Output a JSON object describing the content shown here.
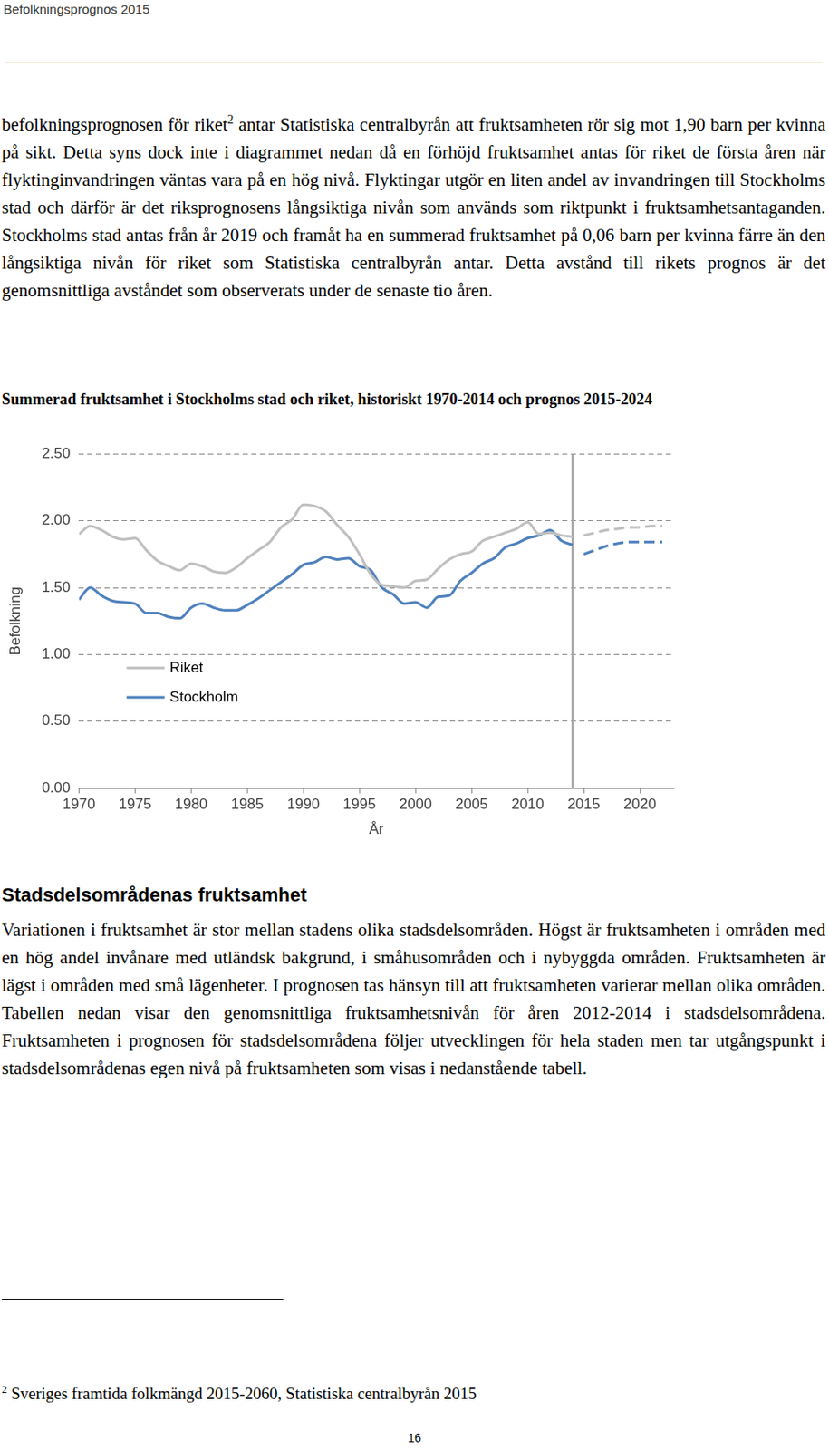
{
  "header": "Befolkningsprognos 2015",
  "intro": {
    "text_before": "befolkningsprognosen för riket",
    "footnote_ref": "2",
    "text_after": " antar Statistiska centralbyrån att fruktsamheten rör sig mot 1,90 barn per kvinna på sikt. Detta syns dock inte i diagrammet nedan då en förhöjd fruktsamhet antas för riket de första åren när flyktinginvandringen väntas vara på en hög nivå. Flyktingar utgör en liten andel av invandringen till Stockholms stad och därför är det riksprognosens långsiktiga nivån som används som riktpunkt i fruktsamhetsantaganden. Stockholms stad antas från år 2019 och framåt ha en summerad fruktsamhet på 0,06 barn per kvinna färre än den långsiktiga nivån för riket som Statistiska centralbyrån antar. Detta avstånd till rikets prognos är det genomsnittliga avståndet som observerats under de senaste tio åren."
  },
  "chart_data": {
    "type": "line",
    "title": "Summerad fruktsamhet i Stockholms stad och riket, historiskt 1970-2014 och prognos 2015-2024",
    "x_label": "År",
    "y_label": "Befolkning",
    "x": [
      1970,
      1971,
      1972,
      1973,
      1974,
      1975,
      1976,
      1977,
      1978,
      1979,
      1980,
      1981,
      1982,
      1983,
      1984,
      1985,
      1986,
      1987,
      1988,
      1989,
      1990,
      1991,
      1992,
      1993,
      1994,
      1995,
      1996,
      1997,
      1998,
      1999,
      2000,
      2001,
      2002,
      2003,
      2004,
      2005,
      2006,
      2007,
      2008,
      2009,
      2010,
      2011,
      2012,
      2013,
      2014,
      2015,
      2016,
      2017,
      2018,
      2019,
      2020,
      2021,
      2022
    ],
    "series": [
      {
        "name": "Riket",
        "color": "#bfbfbf",
        "line_style": "solid",
        "values": [
          1.9,
          1.96,
          1.93,
          1.88,
          1.86,
          1.87,
          1.78,
          1.7,
          1.66,
          1.63,
          1.68,
          1.66,
          1.62,
          1.61,
          1.65,
          1.72,
          1.78,
          1.84,
          1.95,
          2.01,
          2.12,
          2.11,
          2.07,
          1.97,
          1.88,
          1.75,
          1.6,
          1.52,
          1.51,
          1.5,
          1.55,
          1.56,
          1.64,
          1.71,
          1.75,
          1.77,
          1.85,
          1.88,
          1.91,
          1.94,
          1.99,
          1.9,
          1.91,
          1.89,
          1.88,
          null,
          null,
          null,
          null,
          null,
          null,
          null,
          null
        ],
        "forecast": {
          "line_style": "dashed",
          "values": [
            null,
            null,
            null,
            null,
            null,
            null,
            null,
            null,
            null,
            null,
            null,
            null,
            null,
            null,
            null,
            null,
            null,
            null,
            null,
            null,
            null,
            null,
            null,
            null,
            null,
            null,
            null,
            null,
            null,
            null,
            null,
            null,
            null,
            null,
            null,
            null,
            null,
            null,
            null,
            null,
            null,
            null,
            null,
            null,
            null,
            1.89,
            1.91,
            1.93,
            1.94,
            1.95,
            1.95,
            1.96,
            1.96
          ]
        }
      },
      {
        "name": "Stockholm",
        "color": "#4f81bd",
        "line_style": "solid",
        "values": [
          1.41,
          1.5,
          1.44,
          1.4,
          1.39,
          1.38,
          1.31,
          1.31,
          1.28,
          1.27,
          1.35,
          1.38,
          1.35,
          1.33,
          1.33,
          1.37,
          1.42,
          1.48,
          1.54,
          1.6,
          1.67,
          1.69,
          1.73,
          1.71,
          1.72,
          1.66,
          1.63,
          1.5,
          1.45,
          1.38,
          1.39,
          1.35,
          1.43,
          1.44,
          1.55,
          1.61,
          1.68,
          1.72,
          1.8,
          1.83,
          1.87,
          1.89,
          1.93,
          1.85,
          1.82,
          null,
          null,
          null,
          null,
          null,
          null,
          null,
          null
        ],
        "forecast": {
          "line_style": "dashed",
          "values": [
            null,
            null,
            null,
            null,
            null,
            null,
            null,
            null,
            null,
            null,
            null,
            null,
            null,
            null,
            null,
            null,
            null,
            null,
            null,
            null,
            null,
            null,
            null,
            null,
            null,
            null,
            null,
            null,
            null,
            null,
            null,
            null,
            null,
            null,
            null,
            null,
            null,
            null,
            null,
            null,
            null,
            null,
            null,
            null,
            null,
            1.75,
            1.78,
            1.81,
            1.83,
            1.84,
            1.84,
            1.84,
            1.84
          ]
        }
      }
    ],
    "divider_x": 2014,
    "xlim": [
      1970,
      2023
    ],
    "xticks": [
      1970,
      1975,
      1980,
      1985,
      1990,
      1995,
      2000,
      2005,
      2010,
      2015,
      2020
    ],
    "ylim": [
      0,
      2.5
    ],
    "yticks": [
      {
        "value": 0,
        "label": "0.00"
      },
      {
        "value": 0.5,
        "label": "0.50"
      },
      {
        "value": 1,
        "label": "1.00"
      },
      {
        "value": 1.5,
        "label": "1.50"
      },
      {
        "value": 2,
        "label": "2.00"
      },
      {
        "value": 2.5,
        "label": "2.50"
      }
    ],
    "grid": true,
    "legend": "left"
  },
  "section": {
    "heading": "Stadsdelsområdenas fruktsamhet",
    "text": "Variationen i fruktsamhet är stor mellan stadens olika stadsdelsområden. Högst är fruktsamheten i områden med en hög andel invånare med utländsk bakgrund, i småhusområden och i nybyggda områden. Fruktsamheten är lägst i områden med små lägenheter. I prognosen tas hänsyn till att fruktsamheten varierar mellan olika områden. Tabellen nedan visar den genomsnittliga fruktsamhetsnivån för åren 2012-2014 i stadsdelsområdena. Fruktsamheten i prognosen för stadsdelsområdena följer utvecklingen för hela staden men tar utgångspunkt i stadsdelsområdenas egen nivå på fruktsamheten som visas i nedanstående tabell."
  },
  "footnote": {
    "number": "2",
    "text": "Sveriges framtida folkmängd 2015-2060, Statistiska centralbyrån 2015"
  },
  "page_number": "16"
}
